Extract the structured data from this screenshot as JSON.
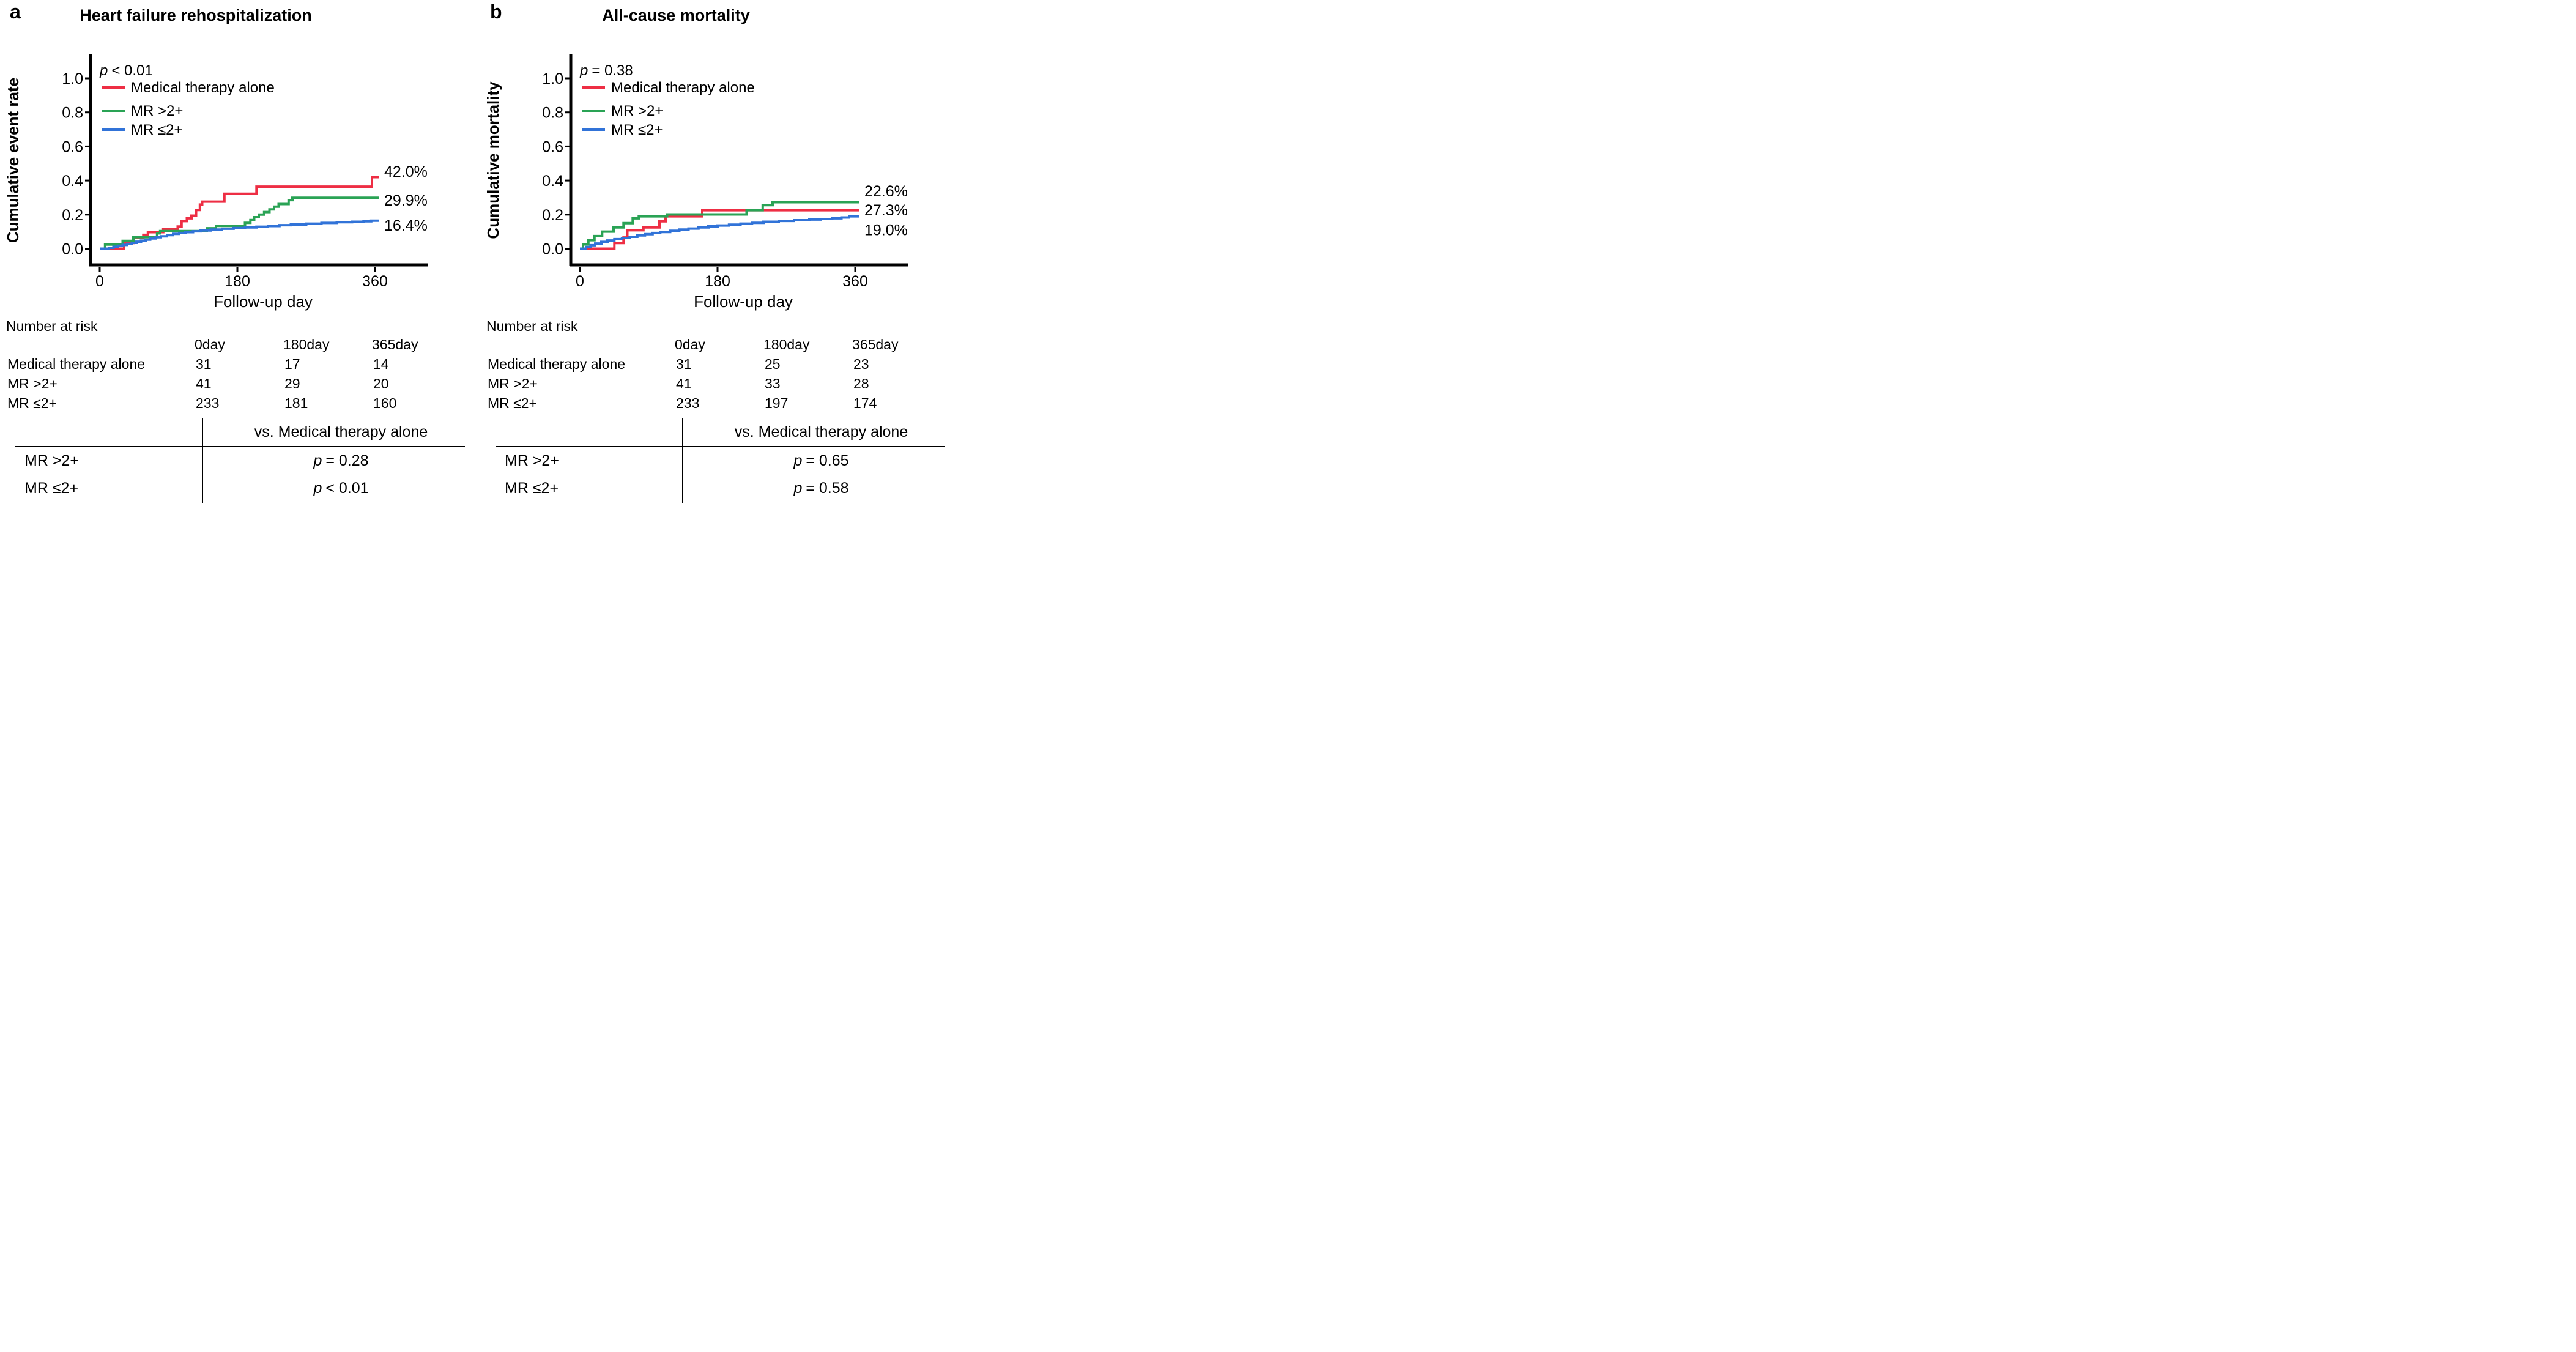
{
  "page": {
    "background": "#ffffff"
  },
  "colors": {
    "medical_therapy_alone": "#EE2E44",
    "mr_gt2": "#2AA355",
    "mr_le2": "#3173D8",
    "axis": "#000000"
  },
  "panels": [
    {
      "letter": "a",
      "number_at_risk_label": "Number at risk",
      "risk_table": {
        "col_headers": [
          "0day",
          "180day",
          "365day"
        ],
        "rows": [
          {
            "label": "Medical therapy alone",
            "values": [
              "31",
              "17",
              "14"
            ]
          },
          {
            "label": "MR >2+",
            "values": [
              "41",
              "29",
              "20"
            ]
          },
          {
            "label": "MR ≤2+",
            "values": [
              "233",
              "181",
              "160"
            ]
          }
        ]
      },
      "comparison": {
        "header": "vs. Medical therapy alone",
        "rows": [
          {
            "label": "MR >2+",
            "p_symbol": "p",
            "p_rest": "= 0.28"
          },
          {
            "label": "MR ≤2+",
            "p_symbol": "p",
            "p_rest": "< 0.01"
          }
        ]
      }
    },
    {
      "letter": "b",
      "number_at_risk_label": "Number at risk",
      "risk_table": {
        "col_headers": [
          "0day",
          "180day",
          "365day"
        ],
        "rows": [
          {
            "label": "Medical therapy alone",
            "values": [
              "31",
              "25",
              "23"
            ]
          },
          {
            "label": "MR >2+",
            "values": [
              "41",
              "33",
              "28"
            ]
          },
          {
            "label": "MR ≤2+",
            "values": [
              "233",
              "197",
              "174"
            ]
          }
        ]
      },
      "comparison": {
        "header": "vs. Medical therapy alone",
        "rows": [
          {
            "label": "MR >2+",
            "p_symbol": "p",
            "p_rest": "= 0.65"
          },
          {
            "label": "MR ≤2+",
            "p_symbol": "p",
            "p_rest": "= 0.58"
          }
        ]
      }
    }
  ],
  "chart_data": [
    {
      "type": "line",
      "subtype": "kaplan-meier-step",
      "title": "Heart failure rehospitalization",
      "ylabel": "Cumulative event rate",
      "xlabel": "Follow-up day",
      "p_symbol": "p",
      "p_rest": "< 0.01",
      "xlim": [
        0,
        365
      ],
      "ylim": [
        0,
        1
      ],
      "grid": false,
      "legend_position": "inside-top-left",
      "xticks": [
        {
          "v": 0,
          "label": "0"
        },
        {
          "v": 180,
          "label": "180"
        },
        {
          "v": 360,
          "label": "360"
        }
      ],
      "yticks": [
        {
          "v": 0.0,
          "label": "0.0"
        },
        {
          "v": 0.2,
          "label": "0.2"
        },
        {
          "v": 0.4,
          "label": "0.4"
        },
        {
          "v": 0.6,
          "label": "0.6"
        },
        {
          "v": 0.8,
          "label": "0.8"
        },
        {
          "v": 1.0,
          "label": "1.0"
        }
      ],
      "series": [
        {
          "name": "Medical therapy alone",
          "color": "#EE2E44",
          "end_label": "42.0%",
          "end_day": 365,
          "steps": [
            [
              32,
              0.033
            ],
            [
              44,
              0.065
            ],
            [
              57,
              0.081
            ],
            [
              63,
              0.097
            ],
            [
              83,
              0.113
            ],
            [
              102,
              0.13
            ],
            [
              107,
              0.162
            ],
            [
              114,
              0.178
            ],
            [
              120,
              0.194
            ],
            [
              126,
              0.227
            ],
            [
              131,
              0.259
            ],
            [
              134,
              0.276
            ],
            [
              163,
              0.322
            ],
            [
              205,
              0.364
            ],
            [
              356,
              0.42
            ]
          ]
        },
        {
          "name": "MR >2+",
          "color": "#2AA355",
          "end_label": "29.9%",
          "end_day": 365,
          "steps": [
            [
              7,
              0.024
            ],
            [
              30,
              0.046
            ],
            [
              44,
              0.068
            ],
            [
              75,
              0.09
            ],
            [
              79,
              0.103
            ],
            [
              140,
              0.12
            ],
            [
              152,
              0.134
            ],
            [
              190,
              0.152
            ],
            [
              197,
              0.168
            ],
            [
              202,
              0.185
            ],
            [
              208,
              0.2
            ],
            [
              215,
              0.215
            ],
            [
              222,
              0.231
            ],
            [
              228,
              0.247
            ],
            [
              234,
              0.262
            ],
            [
              247,
              0.285
            ],
            [
              252,
              0.299
            ]
          ]
        },
        {
          "name": "MR ≤2+",
          "color": "#3173D8",
          "end_label": "16.4%",
          "end_day": 365,
          "steps": [
            [
              12,
              0.005
            ],
            [
              18,
              0.011
            ],
            [
              24,
              0.017
            ],
            [
              30,
              0.022
            ],
            [
              36,
              0.028
            ],
            [
              42,
              0.034
            ],
            [
              48,
              0.041
            ],
            [
              54,
              0.047
            ],
            [
              60,
              0.053
            ],
            [
              66,
              0.06
            ],
            [
              73,
              0.067
            ],
            [
              80,
              0.073
            ],
            [
              88,
              0.08
            ],
            [
              96,
              0.087
            ],
            [
              104,
              0.092
            ],
            [
              112,
              0.097
            ],
            [
              122,
              0.102
            ],
            [
              132,
              0.107
            ],
            [
              145,
              0.112
            ],
            [
              160,
              0.117
            ],
            [
              175,
              0.121
            ],
            [
              190,
              0.125
            ],
            [
              205,
              0.129
            ],
            [
              220,
              0.133
            ],
            [
              235,
              0.138
            ],
            [
              250,
              0.142
            ],
            [
              270,
              0.147
            ],
            [
              290,
              0.151
            ],
            [
              310,
              0.155
            ],
            [
              330,
              0.158
            ],
            [
              345,
              0.161
            ],
            [
              355,
              0.164
            ]
          ]
        }
      ]
    },
    {
      "type": "line",
      "subtype": "kaplan-meier-step",
      "title": "All-cause mortality",
      "ylabel": "Cumulative mortality",
      "xlabel": "Follow-up day",
      "p_symbol": "p",
      "p_rest": "= 0.38",
      "xlim": [
        0,
        365
      ],
      "ylim": [
        0,
        1
      ],
      "grid": false,
      "legend_position": "inside-top-left",
      "xticks": [
        {
          "v": 0,
          "label": "0"
        },
        {
          "v": 180,
          "label": "180"
        },
        {
          "v": 360,
          "label": "360"
        }
      ],
      "yticks": [
        {
          "v": 0.0,
          "label": "0.0"
        },
        {
          "v": 0.2,
          "label": "0.2"
        },
        {
          "v": 0.4,
          "label": "0.4"
        },
        {
          "v": 0.6,
          "label": "0.6"
        },
        {
          "v": 0.8,
          "label": "0.8"
        },
        {
          "v": 1.0,
          "label": "1.0"
        }
      ],
      "series": [
        {
          "name": "Medical therapy alone",
          "color": "#EE2E44",
          "end_label": "22.6%",
          "end_day": 365,
          "steps": [
            [
              45,
              0.033
            ],
            [
              57,
              0.066
            ],
            [
              62,
              0.108
            ],
            [
              83,
              0.125
            ],
            [
              104,
              0.161
            ],
            [
              112,
              0.19
            ],
            [
              160,
              0.226
            ]
          ]
        },
        {
          "name": "MR >2+",
          "color": "#2AA355",
          "end_label": "27.3%",
          "end_day": 365,
          "steps": [
            [
              4,
              0.025
            ],
            [
              11,
              0.05
            ],
            [
              19,
              0.074
            ],
            [
              29,
              0.1
            ],
            [
              44,
              0.125
            ],
            [
              57,
              0.15
            ],
            [
              69,
              0.178
            ],
            [
              77,
              0.19
            ],
            [
              114,
              0.201
            ],
            [
              218,
              0.226
            ],
            [
              239,
              0.256
            ],
            [
              252,
              0.273
            ]
          ]
        },
        {
          "name": "MR ≤2+",
          "color": "#3173D8",
          "end_label": "19.0%",
          "end_day": 365,
          "steps": [
            [
              8,
              0.01
            ],
            [
              14,
              0.02
            ],
            [
              20,
              0.03
            ],
            [
              28,
              0.04
            ],
            [
              36,
              0.048
            ],
            [
              45,
              0.056
            ],
            [
              55,
              0.063
            ],
            [
              65,
              0.07
            ],
            [
              75,
              0.078
            ],
            [
              85,
              0.085
            ],
            [
              95,
              0.092
            ],
            [
              105,
              0.098
            ],
            [
              118,
              0.105
            ],
            [
              130,
              0.112
            ],
            [
              142,
              0.118
            ],
            [
              155,
              0.125
            ],
            [
              168,
              0.131
            ],
            [
              180,
              0.136
            ],
            [
              195,
              0.141
            ],
            [
              210,
              0.147
            ],
            [
              225,
              0.152
            ],
            [
              240,
              0.158
            ],
            [
              260,
              0.163
            ],
            [
              280,
              0.167
            ],
            [
              300,
              0.171
            ],
            [
              315,
              0.174
            ],
            [
              330,
              0.178
            ],
            [
              342,
              0.183
            ],
            [
              352,
              0.19
            ]
          ]
        }
      ]
    }
  ]
}
